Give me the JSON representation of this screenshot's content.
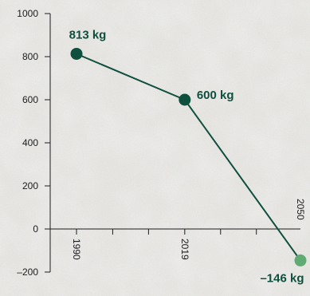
{
  "chart_data": {
    "type": "line",
    "title": "",
    "xlabel": "",
    "ylabel": "",
    "x_range": [
      1980,
      2050
    ],
    "ylim": [
      -200,
      1000
    ],
    "y_ticks": [
      -200,
      0,
      200,
      400,
      600,
      800,
      1000
    ],
    "y_tick_labels": [
      "–200",
      "0",
      "200",
      "400",
      "600",
      "800",
      "1000"
    ],
    "x_ticks_labeled": [
      1990,
      2019,
      2050
    ],
    "x_tick_labels": [
      "1990",
      "2019",
      "2050"
    ],
    "x_minor_ticks": [
      1990,
      1999.7,
      2009.3,
      2019,
      2028.6,
      2038.2
    ],
    "grid": false,
    "legend": "none",
    "series": [
      {
        "points": [
          {
            "x": 1990,
            "y": 813,
            "label": "813 kg",
            "color": "#0f4f3d"
          },
          {
            "x": 2019,
            "y": 600,
            "label": "600 kg",
            "color": "#0f4f3d"
          },
          {
            "x": 2050,
            "y": -146,
            "label": "–146 kg",
            "color": "#5fab73"
          }
        ]
      }
    ],
    "colors": {
      "line": "#0f4f3d",
      "axis": "#1c1c1c",
      "highlight": "#5fab73"
    }
  }
}
